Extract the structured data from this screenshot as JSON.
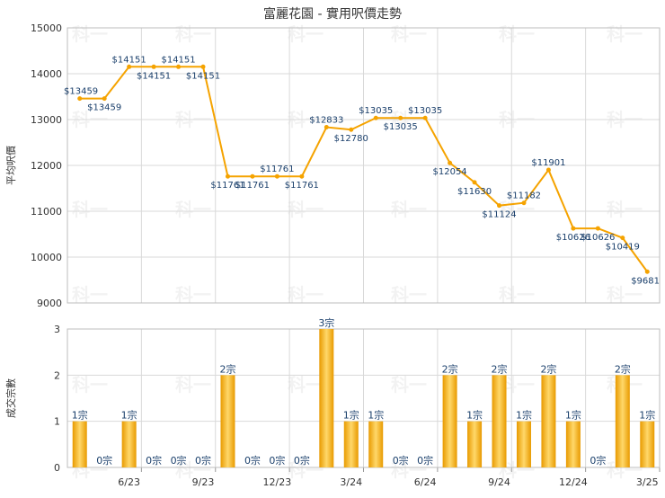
{
  "title": "富麗花園 - 實用呎價走勢",
  "watermark": "科一",
  "colors": {
    "line": "#f5a300",
    "bar_edge": "#e89a00",
    "bar_mid": "#ffd86a",
    "grid": "#d9d9d9",
    "label": "#1a3f6b"
  },
  "chart_data": [
    {
      "type": "line",
      "title": "富麗花園 - 實用呎價走勢",
      "ylabel": "平均呎價",
      "ylim": [
        9000,
        15000
      ],
      "yticks": [
        9000,
        10000,
        11000,
        12000,
        13000,
        14000,
        15000
      ],
      "label_prefix": "$",
      "grid": true,
      "series": [
        {
          "values": [
            13459,
            13459,
            14151,
            14151,
            14151,
            14151,
            11761,
            11761,
            11761,
            11761,
            12833,
            12780,
            13035,
            13035,
            13035,
            12054,
            11630,
            11124,
            11182,
            11901,
            10626,
            10626,
            10419,
            9681
          ]
        }
      ]
    },
    {
      "type": "bar",
      "ylabel": "成交宗數",
      "ylim": [
        0,
        3
      ],
      "yticks": [
        0,
        1,
        2,
        3
      ],
      "unit_suffix": "宗",
      "grid": true,
      "values": [
        1,
        0,
        1,
        0,
        0,
        0,
        2,
        0,
        0,
        0,
        3,
        1,
        1,
        0,
        0,
        2,
        1,
        2,
        1,
        2,
        1,
        0,
        2,
        1
      ],
      "xticks": [
        {
          "index": 2,
          "label": "6/23"
        },
        {
          "index": 5,
          "label": "9/23"
        },
        {
          "index": 8,
          "label": "12/23"
        },
        {
          "index": 11,
          "label": "3/24"
        },
        {
          "index": 14,
          "label": "6/24"
        },
        {
          "index": 17,
          "label": "9/24"
        },
        {
          "index": 20,
          "label": "12/24"
        },
        {
          "index": 23,
          "label": "3/25"
        }
      ]
    }
  ]
}
